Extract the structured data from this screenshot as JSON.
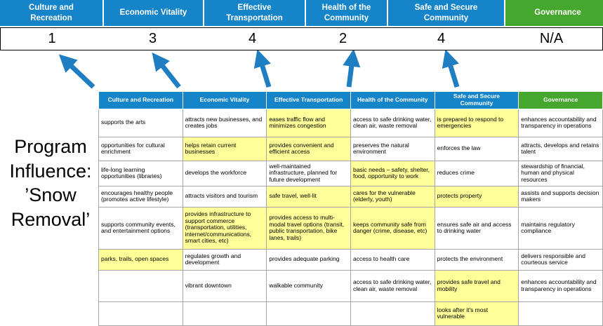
{
  "program_label": "Program Influence: ’Snow Removal’",
  "colors": {
    "header_blue": "#1584C8",
    "header_green": "#46A72E",
    "highlight_yellow": "#FFFF99",
    "arrow_blue": "#1F7EC2",
    "score_border": "#000000"
  },
  "categories": [
    {
      "label": "Culture and Recreation",
      "score": "1",
      "color": "#1584C8"
    },
    {
      "label": "Economic Vitality",
      "score": "3",
      "color": "#1584C8"
    },
    {
      "label": "Effective Transportation",
      "score": "4",
      "color": "#1584C8"
    },
    {
      "label": "Health of the Community",
      "score": "2",
      "color": "#1584C8"
    },
    {
      "label": "Safe and Secure Community",
      "score": "4",
      "color": "#1584C8"
    },
    {
      "label": "Governance",
      "score": "N/A",
      "color": "#46A72E"
    }
  ],
  "table": {
    "rows": [
      [
        {
          "text": "supports the arts",
          "highlight": false
        },
        {
          "text": "attracts new businesses, and creates jobs",
          "highlight": false
        },
        {
          "text": "eases traffic flow and minimizes congestion",
          "highlight": true
        },
        {
          "text": "access to safe drinking water, clean air, waste removal",
          "highlight": false
        },
        {
          "text": "is prepared to respond to emergencies",
          "highlight": true
        },
        {
          "text": "enhances accountability and transparency in operations",
          "highlight": false
        }
      ],
      [
        {
          "text": "opportunities for cultural enrichment",
          "highlight": false
        },
        {
          "text": "helps retain current businesses",
          "highlight": true
        },
        {
          "text": "provides convenient and efficient access",
          "highlight": true
        },
        {
          "text": "preserves the natural environment",
          "highlight": false
        },
        {
          "text": "enforces the law",
          "highlight": false
        },
        {
          "text": "attracts, develops and retains talent",
          "highlight": false
        }
      ],
      [
        {
          "text": "life-long learning opportunities (libraries)",
          "highlight": false
        },
        {
          "text": "develops the workforce",
          "highlight": false
        },
        {
          "text": "well-maintained infrastructure, planned for future development",
          "highlight": false
        },
        {
          "text": "basic needs – safety, shelter, food, opportunity to work",
          "highlight": true
        },
        {
          "text": "reduces crime",
          "highlight": false
        },
        {
          "text": "stewardship of financial, human and physical resources",
          "highlight": false
        }
      ],
      [
        {
          "text": "encourages healthy people (promotes active lifestyle)",
          "highlight": false
        },
        {
          "text": "attracts visitors and tourism",
          "highlight": false
        },
        {
          "text": "safe travel, well-lit",
          "highlight": true
        },
        {
          "text": "cares for the vulnerable (elderly, youth)",
          "highlight": true
        },
        {
          "text": "protects property",
          "highlight": true
        },
        {
          "text": "assists and supports decision makers",
          "highlight": false
        }
      ],
      [
        {
          "text": "supports community events, and entertainment options",
          "highlight": false
        },
        {
          "text": "provides infrastructure to support commerce (transportation, utilities, internet/communications, smart cities, etc)",
          "highlight": true
        },
        {
          "text": "provides access to multi-modal travel options (transit, public transportation, bike lanes, trails)",
          "highlight": true
        },
        {
          "text": "keeps community safe from danger (crime, disease, etc)",
          "highlight": true
        },
        {
          "text": "ensures safe air and access to drinking water",
          "highlight": false
        },
        {
          "text": "maintains regulatory compliance",
          "highlight": false
        }
      ],
      [
        {
          "text": "parks, trails, open spaces",
          "highlight": true
        },
        {
          "text": "regulates growth and development",
          "highlight": false
        },
        {
          "text": "provides adequate parking",
          "highlight": false
        },
        {
          "text": "access to health care",
          "highlight": false
        },
        {
          "text": "protects the environment",
          "highlight": false
        },
        {
          "text": "delivers responsible and courteous service",
          "highlight": false
        }
      ],
      [
        {
          "text": "",
          "highlight": false
        },
        {
          "text": "vibrant downtown",
          "highlight": false
        },
        {
          "text": "walkable community",
          "highlight": false
        },
        {
          "text": "access to safe drinking water, clean air, waste removal",
          "highlight": false
        },
        {
          "text": "provides safe travel and mobility",
          "highlight": true
        },
        {
          "text": "enhances accountability and transparency in operations",
          "highlight": false
        }
      ],
      [
        {
          "text": "",
          "highlight": false
        },
        {
          "text": "",
          "highlight": false
        },
        {
          "text": "",
          "highlight": false
        },
        {
          "text": "",
          "highlight": false
        },
        {
          "text": "looks after it's most vulnerable",
          "highlight": true
        },
        {
          "text": "",
          "highlight": false
        }
      ]
    ]
  }
}
